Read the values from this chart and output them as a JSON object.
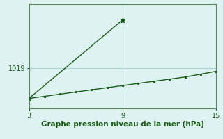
{
  "xlabel": "Graphe pression niveau de la mer (hPa)",
  "background_color": "#dff2f2",
  "plot_bg_color": "#dff2f2",
  "line_color": "#1a5c1a",
  "grid_color": "#aad4d4",
  "spine_color": "#5a8a5a",
  "x_ticks": [
    3,
    9,
    15
  ],
  "xlim": [
    3,
    15
  ],
  "ylim": [
    1016.2,
    1023.5
  ],
  "yticks": [
    1019
  ],
  "line1_x": [
    3,
    9
  ],
  "line1_y": [
    1016.9,
    1022.4
  ],
  "line2_x": [
    3,
    4,
    5,
    6,
    7,
    8,
    9,
    10,
    11,
    12,
    13,
    14,
    15
  ],
  "line2_y": [
    1016.9,
    1017.05,
    1017.2,
    1017.35,
    1017.5,
    1017.65,
    1017.8,
    1017.95,
    1018.1,
    1018.25,
    1018.4,
    1018.6,
    1018.8
  ],
  "line_width": 1.0,
  "marker": "*",
  "marker_size_big": 5,
  "marker_size_small": 2,
  "xlabel_color": "#1a5c1a",
  "xlabel_fontsize": 7.5,
  "tick_fontsize": 7,
  "tick_color": "#1a5c1a"
}
